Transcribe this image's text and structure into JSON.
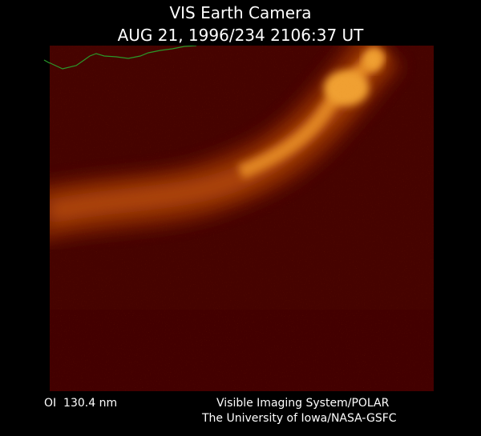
{
  "header": {
    "title": "VIS Earth Camera",
    "timestamp": "AUG 21, 1996/234 2106:37 UT"
  },
  "footer": {
    "wavelength": "OI  130.4 nm",
    "instrument": "Visible Imaging System/POLAR",
    "credit": "The University of Iowa/NASA-GSFC"
  }
}
